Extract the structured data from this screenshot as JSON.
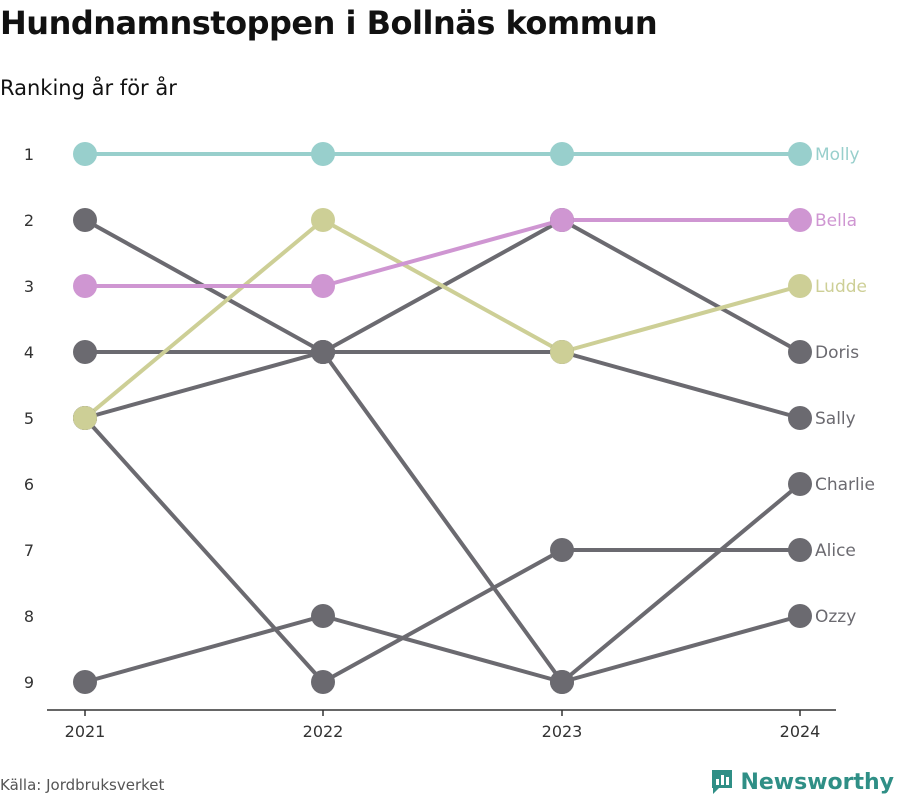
{
  "title": "Hundnamnstoppen i Bollnäs kommun",
  "subtitle": "Ranking år för år",
  "source": "Källa: Jordbruksverket",
  "brand": "Newsworthy",
  "colors": {
    "highlight": {
      "Molly": "#98cfcc",
      "Bella": "#cf96d2",
      "Ludde": "#cdcf96"
    },
    "default": "#6b6a70",
    "axis": "#333333",
    "brand": "#2f8f86"
  },
  "chart_data": {
    "type": "line",
    "chart_subtype": "bump",
    "x": [
      "2021",
      "2022",
      "2023",
      "2024"
    ],
    "y_ticks": [
      "1",
      "2",
      "3",
      "4",
      "5",
      "6",
      "7",
      "8",
      "9"
    ],
    "ylim": [
      1,
      9
    ],
    "y_inverted": true,
    "grid": false,
    "series": [
      {
        "name": "Ozzy",
        "values": [
          9,
          8,
          9,
          8
        ],
        "highlight": false
      },
      {
        "name": "Alice",
        "values": [
          5,
          9,
          7,
          7
        ],
        "highlight": false
      },
      {
        "name": "Charlie",
        "values": [
          5,
          4,
          9,
          6
        ],
        "highlight": false
      },
      {
        "name": "Sally",
        "values": [
          4,
          4,
          4,
          5
        ],
        "highlight": false
      },
      {
        "name": "Doris",
        "values": [
          2,
          4,
          2,
          4
        ],
        "highlight": false
      },
      {
        "name": "Ludde",
        "values": [
          5,
          2,
          4,
          3
        ],
        "highlight": true
      },
      {
        "name": "Bella",
        "values": [
          3,
          3,
          2,
          2
        ],
        "highlight": true
      },
      {
        "name": "Molly",
        "values": [
          1,
          1,
          1,
          1
        ],
        "highlight": true
      }
    ]
  }
}
